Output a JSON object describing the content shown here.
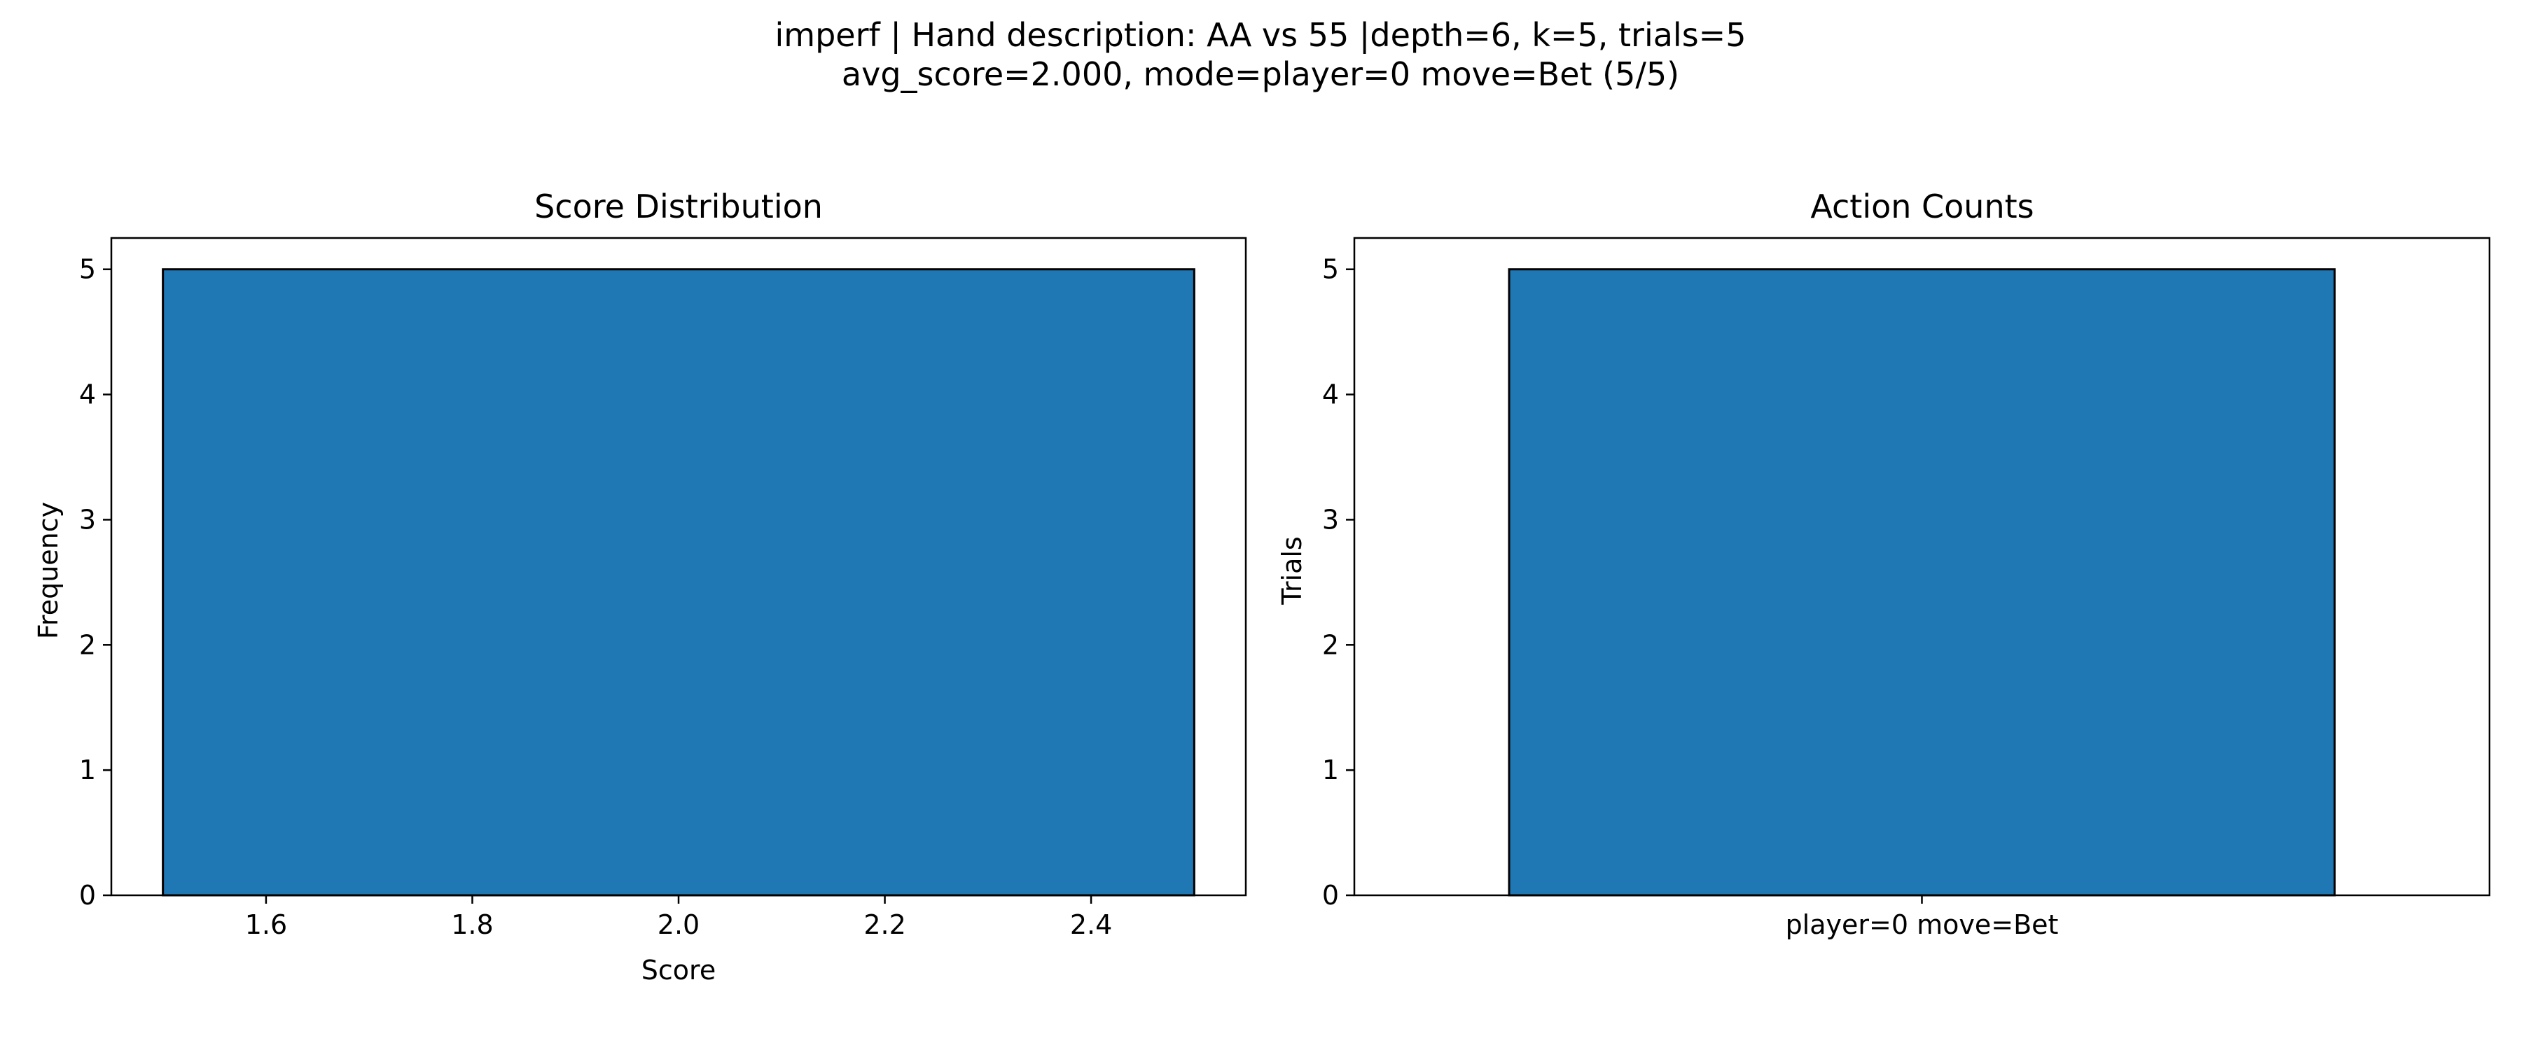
{
  "figure": {
    "title_line1": "imperf | Hand description: AA vs 55 |depth=6, k=5, trials=5",
    "title_line2": "avg_score=2.000, mode=player=0 move=Bet (5/5)"
  },
  "chart_data": [
    {
      "type": "bar",
      "title": "Score Distribution",
      "xlabel": "Score",
      "ylabel": "Frequency",
      "bins": [
        {
          "x0": 1.5,
          "x1": 2.5,
          "value": 5
        }
      ],
      "xlim": [
        1.45,
        2.55
      ],
      "ylim": [
        0,
        5.25
      ],
      "xticks": [
        1.6,
        1.8,
        2.0,
        2.2,
        2.4
      ],
      "xtick_labels": [
        "1.6",
        "1.8",
        "2.0",
        "2.2",
        "2.4"
      ],
      "yticks": [
        0,
        1,
        2,
        3,
        4,
        5
      ],
      "ytick_labels": [
        "0",
        "1",
        "2",
        "3",
        "4",
        "5"
      ],
      "bar_color": "#1f77b4",
      "edge_color": "#000000",
      "grid": false
    },
    {
      "type": "bar",
      "title": "Action Counts",
      "xlabel": "",
      "ylabel": "Trials",
      "categories": [
        "player=0 move=Bet"
      ],
      "values": [
        5
      ],
      "xlim": [
        -0.55,
        0.55
      ],
      "ylim": [
        0,
        5.25
      ],
      "yticks": [
        0,
        1,
        2,
        3,
        4,
        5
      ],
      "ytick_labels": [
        "0",
        "1",
        "2",
        "3",
        "4",
        "5"
      ],
      "bar_color": "#1f77b4",
      "edge_color": "#000000",
      "grid": false
    }
  ]
}
